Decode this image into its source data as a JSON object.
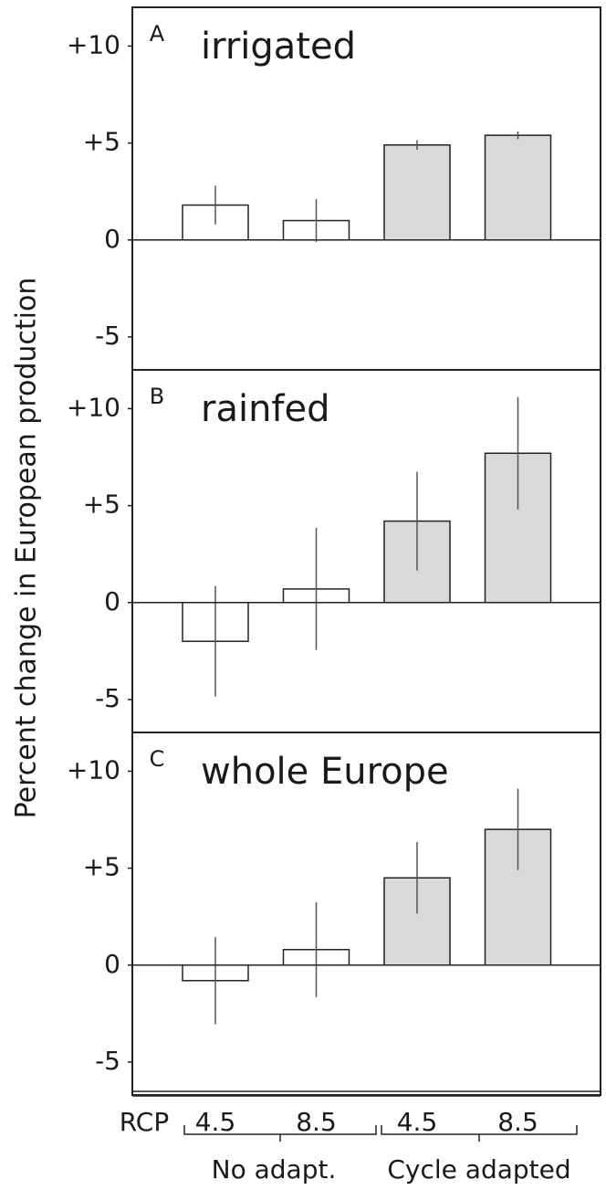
{
  "y_label": "Percent change in European production",
  "x_axis": {
    "prefix": "RCP",
    "categories": [
      "4.5",
      "8.5",
      "4.5",
      "8.5"
    ],
    "groups": [
      "No adapt.",
      "Cycle adapted"
    ]
  },
  "chart_data": [
    {
      "type": "bar",
      "panel_label": "A",
      "title": "irrigated",
      "values": [
        1.8,
        1.0,
        4.9,
        5.4
      ],
      "errors": [
        1.0,
        1.1,
        0.25,
        0.2
      ],
      "colors": [
        "#ffffff",
        "#ffffff",
        "#d9d9d9",
        "#d9d9d9"
      ],
      "ylim": [
        -6.7,
        12
      ],
      "yticks": [
        {
          "value": 10,
          "label": "+10"
        },
        {
          "value": 5,
          "label": "+5"
        },
        0,
        -5
      ]
    },
    {
      "type": "bar",
      "panel_label": "B",
      "title": "rainfed",
      "values": [
        -2.0,
        0.7,
        4.2,
        7.7
      ],
      "errors": [
        2.85,
        3.15,
        2.55,
        2.9
      ],
      "colors": [
        "#ffffff",
        "#ffffff",
        "#d9d9d9",
        "#d9d9d9"
      ],
      "ylim": [
        -6.7,
        12
      ],
      "yticks": [
        {
          "value": 10,
          "label": "+10"
        },
        {
          "value": 5,
          "label": "+5"
        },
        0,
        -5
      ]
    },
    {
      "type": "bar",
      "panel_label": "C",
      "title": "whole Europe",
      "values": [
        -0.8,
        0.8,
        4.5,
        7.0
      ],
      "errors": [
        2.25,
        2.45,
        1.85,
        2.1
      ],
      "colors": [
        "#ffffff",
        "#ffffff",
        "#d9d9d9",
        "#d9d9d9"
      ],
      "ylim": [
        -6.7,
        12
      ],
      "yticks": [
        {
          "value": 10,
          "label": "+10"
        },
        {
          "value": 5,
          "label": "+5"
        },
        0,
        -5
      ]
    }
  ]
}
